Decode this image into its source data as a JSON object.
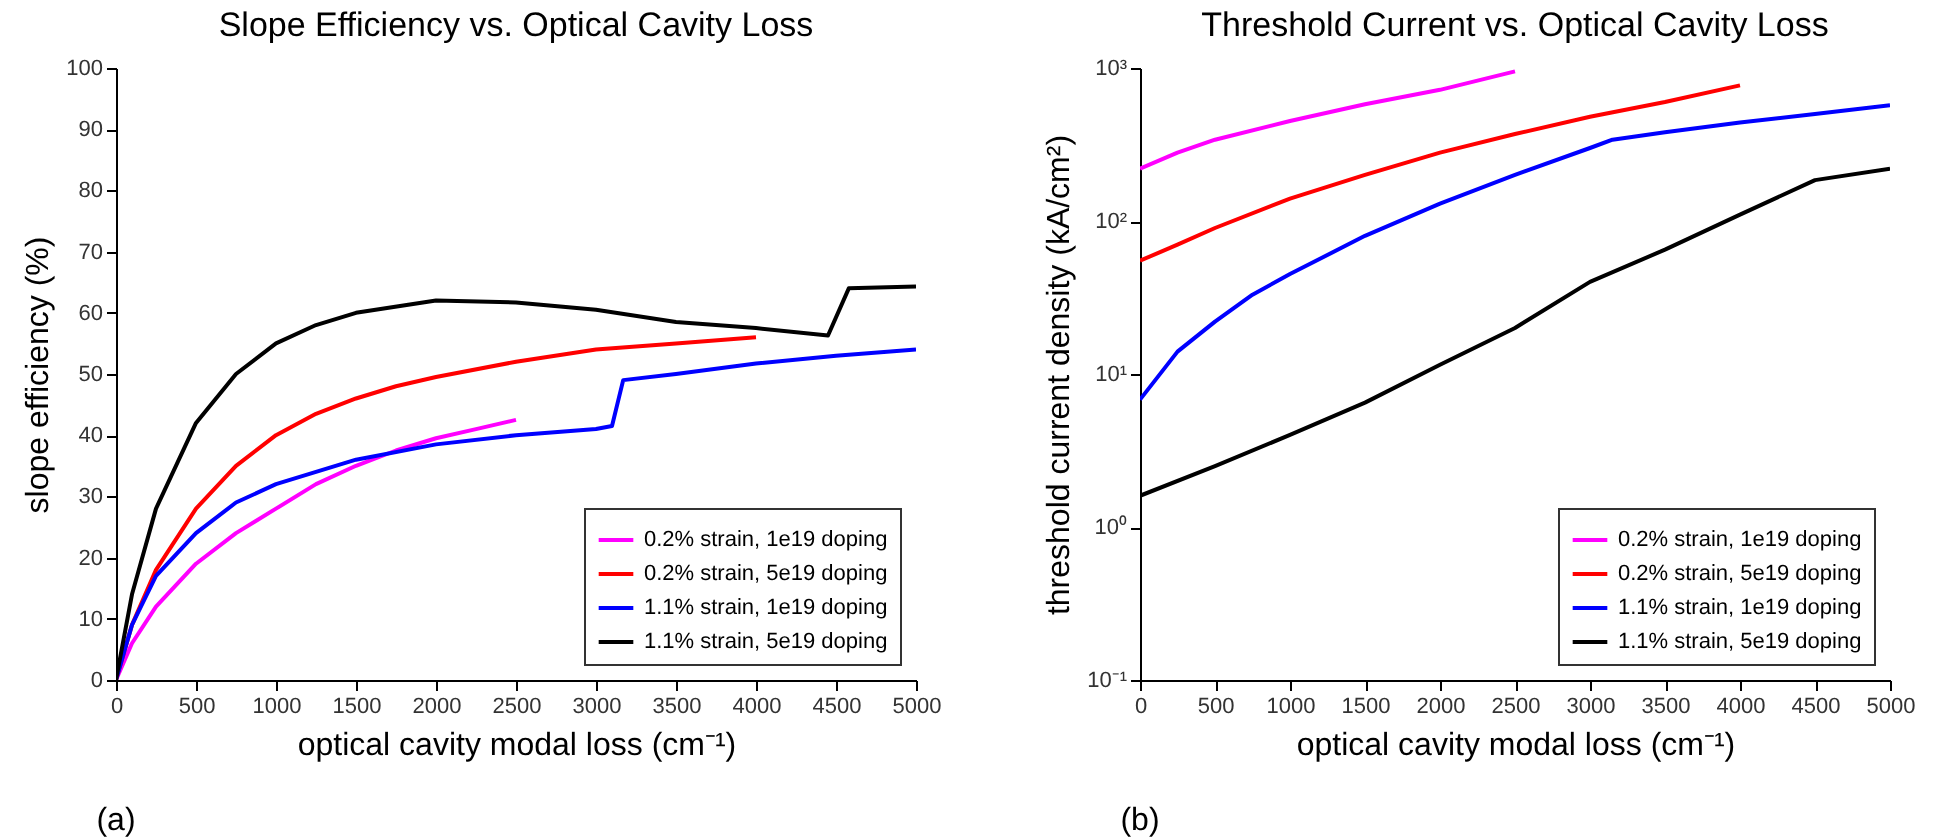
{
  "chart_data": [
    {
      "type": "line",
      "title": "Slope Efficiency vs. Optical Cavity Loss",
      "xlabel": "optical cavity modal loss (cm⁻¹)",
      "ylabel": "slope efficiency (%)",
      "annotations": [
        "(a)"
      ],
      "xlim": [
        0,
        5000
      ],
      "xticks": [
        0,
        500,
        1000,
        1500,
        2000,
        2500,
        3000,
        3500,
        4000,
        4500,
        5000
      ],
      "ylim": [
        0,
        100
      ],
      "yticks": [
        0,
        10,
        20,
        30,
        40,
        50,
        60,
        70,
        80,
        90,
        100
      ],
      "legend": "bottom right",
      "series": [
        {
          "name": "0.2% strain, 1e19 doping",
          "color": "#ff00ff",
          "x": [
            0,
            100,
            250,
            500,
            750,
            1000,
            1250,
            1500,
            1750,
            2000,
            2250,
            2500
          ],
          "values": [
            0,
            6,
            12,
            19,
            24,
            28,
            32,
            35,
            37.5,
            39.5,
            41,
            42.5
          ]
        },
        {
          "name": "0.2% strain, 5e19 doping",
          "color": "#ff0000",
          "x": [
            0,
            100,
            250,
            500,
            750,
            1000,
            1250,
            1500,
            1750,
            2000,
            2500,
            3000,
            3500,
            4000
          ],
          "values": [
            0,
            9,
            18,
            28,
            35,
            40,
            43.5,
            46,
            48,
            49.5,
            52,
            54,
            55,
            56
          ]
        },
        {
          "name": "1.1% strain, 1e19 doping",
          "color": "#0000ff",
          "x": [
            0,
            100,
            250,
            500,
            750,
            1000,
            1500,
            2000,
            2500,
            3000,
            3100,
            3170,
            3500,
            4000,
            4500,
            5000
          ],
          "values": [
            0,
            9,
            17,
            24,
            29,
            32,
            36,
            38.5,
            40,
            41,
            41.5,
            49,
            50,
            51.7,
            53,
            54
          ]
        },
        {
          "name": "1.1% strain, 5e19 doping",
          "color": "#000000",
          "x": [
            0,
            100,
            250,
            500,
            750,
            1000,
            1250,
            1500,
            2000,
            2500,
            3000,
            3500,
            4000,
            4450,
            4580,
            5000
          ],
          "values": [
            0,
            14,
            28,
            42,
            50,
            55,
            58,
            60,
            62,
            61.7,
            60.5,
            58.5,
            57.5,
            56.3,
            64,
            64.3
          ]
        }
      ]
    },
    {
      "type": "line",
      "title": "Threshold Current vs. Optical Cavity Loss",
      "xlabel": "optical cavity modal loss (cm⁻¹)",
      "ylabel": "threshold current density (kA/cm²)",
      "annotations": [
        "(b)"
      ],
      "xlim": [
        0,
        5000
      ],
      "xticks": [
        0,
        500,
        1000,
        1500,
        2000,
        2500,
        3000,
        3500,
        4000,
        4500,
        5000
      ],
      "ylim": [
        0.1,
        1000
      ],
      "yticks": [
        {
          "value": 0.1,
          "label": "10⁻¹"
        },
        {
          "value": 1,
          "label": "10⁰"
        },
        {
          "value": 10,
          "label": "10¹"
        },
        {
          "value": 100,
          "label": "10²"
        },
        {
          "value": 1000,
          "label": "10³"
        }
      ],
      "log": "y",
      "legend": "bottom right",
      "series": [
        {
          "name": "0.2% strain, 1e19 doping",
          "color": "#ff00ff",
          "x": [
            0,
            250,
            500,
            1000,
            1500,
            2000,
            2500
          ],
          "values": [
            220,
            280,
            340,
            450,
            580,
            720,
            950
          ]
        },
        {
          "name": "0.2% strain, 5e19 doping",
          "color": "#ff0000",
          "x": [
            0,
            250,
            500,
            1000,
            1500,
            2000,
            2500,
            3000,
            3500,
            4000
          ],
          "values": [
            55,
            70,
            90,
            140,
            200,
            280,
            370,
            480,
            600,
            770
          ]
        },
        {
          "name": "1.1% strain, 1e19 doping",
          "color": "#0000ff",
          "x": [
            0,
            250,
            500,
            750,
            1000,
            1500,
            2000,
            2500,
            3000,
            3150,
            3500,
            4000,
            4500,
            5000
          ],
          "values": [
            6.8,
            14,
            22,
            33,
            45,
            80,
            130,
            200,
            300,
            340,
            380,
            440,
            500,
            570
          ]
        },
        {
          "name": "1.1% strain, 5e19 doping",
          "color": "#000000",
          "x": [
            0,
            500,
            1000,
            1500,
            2000,
            2500,
            3000,
            3500,
            4000,
            4500,
            5000
          ],
          "values": [
            1.6,
            2.5,
            4,
            6.5,
            11.5,
            20,
            40,
            65,
            110,
            185,
            220
          ]
        }
      ]
    }
  ]
}
